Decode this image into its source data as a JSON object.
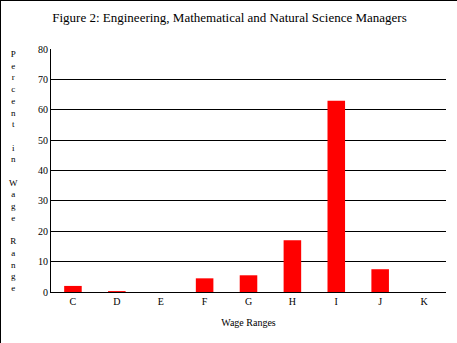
{
  "chart_data": {
    "type": "bar",
    "title": "Figure 2: Engineering, Mathematical and Natural Science Managers",
    "x_label": "Wage Ranges",
    "y_label": "Percent in Wage Range",
    "categories": [
      "C",
      "D",
      "E",
      "F",
      "G",
      "H",
      "I",
      "J",
      "K"
    ],
    "values": [
      2,
      0.3,
      0,
      4.5,
      5.5,
      17,
      63,
      7.5,
      0
    ],
    "color": "#ff0000",
    "ylim": [
      0,
      80
    ],
    "yticks": [
      0,
      10,
      20,
      30,
      40,
      50,
      60,
      70,
      80
    ],
    "grid": true
  }
}
